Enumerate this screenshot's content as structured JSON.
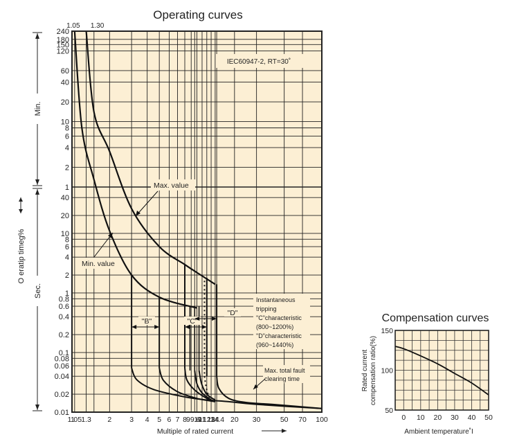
{
  "chart_data": [
    {
      "type": "line",
      "title": "Operating curves",
      "xlabel": "Multiple of rated current",
      "ylabel": "O eratip  timeg%",
      "yscale": "log",
      "xscale": "log",
      "standard_note": "IEC60947-2, RT=30˚",
      "top_markers": [
        "1.05",
        "1.30"
      ],
      "x_tick_labels": [
        "1",
        "1.05",
        "1.3",
        "2",
        "3",
        "4",
        "5",
        "6",
        "7",
        "8",
        "9",
        "9.6",
        "10",
        "11",
        "12",
        "13",
        "14",
        "14.4",
        "20",
        "30",
        "50",
        "70",
        "100"
      ],
      "x_tick_display": [
        "1",
        "1.05",
        "1.3",
        "2",
        "3",
        "4",
        "5",
        "6",
        "7",
        "8",
        "99.6",
        "10",
        "11",
        "12",
        "13",
        "14",
        "14.4",
        "20",
        "30",
        "50",
        "70",
        "100"
      ],
      "minutes_section": {
        "label": "Min.",
        "ticks": [
          "1",
          "2",
          "4",
          "6",
          "8",
          "10",
          "20",
          "40",
          "60",
          "120",
          "150",
          "180",
          "240"
        ]
      },
      "seconds_section": {
        "label": "Sec.",
        "ticks": [
          "0.01",
          "0.02",
          "0.04",
          "0.06",
          "0.08",
          "0.1",
          "0.2",
          "0.4",
          "0.6",
          "0.8",
          "1",
          "2",
          "4",
          "6",
          "8",
          "10",
          "20",
          "40"
        ]
      },
      "annotations": {
        "max_value": "Max. value",
        "min_value": "Min. value",
        "band_b": "\"B\"",
        "band_c": "\"C\"",
        "band_d": "\"D\"",
        "instantaneous_lines": [
          "Instantaneous",
          "tripping",
          "\"C\"characteristic",
          "(800~1200%)",
          "\"D\"characteristic",
          "(960~1440%)"
        ],
        "fault_lines": [
          "Max. total fault",
          "clearing time"
        ]
      },
      "series": [
        {
          "name": "Max. value",
          "points": [
            [
              1.3,
              "240 min"
            ],
            [
              1.5,
              "14 min"
            ],
            [
              2,
              "3.5 min"
            ],
            [
              3,
              "26 s"
            ],
            [
              5,
              "6 s"
            ],
            [
              8,
              "3 s"
            ],
            [
              10,
              "2.2 s"
            ],
            [
              14,
              "1.4 s"
            ]
          ]
        },
        {
          "name": "Min. value",
          "points": [
            [
              1.05,
              "240 min"
            ],
            [
              1.2,
              "8 min"
            ],
            [
              1.5,
              "80 s"
            ],
            [
              2,
              "11 s"
            ],
            [
              3,
              "2 s"
            ],
            [
              5,
              "0.85 s"
            ],
            [
              10,
              "0.56 s"
            ]
          ]
        }
      ],
      "bands": [
        {
          "name": "B",
          "x_range": [
            3,
            5
          ]
        },
        {
          "name": "C",
          "x_range": [
            8,
            12
          ]
        },
        {
          "name": "D",
          "x_range": [
            9.6,
            14.4
          ]
        }
      ]
    },
    {
      "type": "line",
      "title": "Compensation curves",
      "xlabel": "Ambient temperature˚Ι",
      "ylabel": "Rated current compensation ratio(%)",
      "x_ticks": [
        "0",
        "10",
        "20",
        "30",
        "40",
        "50"
      ],
      "y_ticks": [
        "50",
        "100",
        "150"
      ],
      "xlim": [
        -5,
        50
      ],
      "ylim": [
        50,
        150
      ],
      "x": [
        -5,
        0,
        10,
        20,
        30,
        40,
        50
      ],
      "y": [
        130,
        127,
        118,
        108,
        96,
        84,
        69
      ]
    }
  ]
}
